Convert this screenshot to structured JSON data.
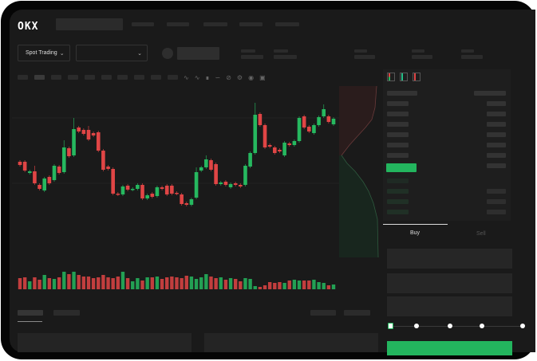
{
  "header": {
    "logo": "OKX",
    "market_selector": "Spot Trading",
    "pair_selector": ""
  },
  "orderbook": {
    "view_icons": [
      "orderbook-both-icon",
      "orderbook-bids-icon",
      "orderbook-asks-icon"
    ]
  },
  "trade_panel": {
    "tabs": [
      {
        "label": "Buy",
        "active": true
      },
      {
        "label": "Sell",
        "active": false
      }
    ],
    "slider_value_percent": 0,
    "slider_stops": [
      0,
      25,
      50,
      75,
      100
    ]
  },
  "colors": {
    "up": "#26b85f",
    "down": "#e04545",
    "background": "#1a1a1a",
    "accent": "#23b55e"
  },
  "chart_data": {
    "type": "candlestick",
    "grid": true,
    "candles": [
      {
        "o": 97,
        "c": 93
      },
      {
        "o": 97,
        "c": 86
      },
      {
        "o": 83,
        "c": 85
      },
      {
        "o": 85,
        "c": 70,
        "h": 92
      },
      {
        "o": 68,
        "c": 63
      },
      {
        "o": 61,
        "c": 76
      },
      {
        "o": 78,
        "c": 70
      },
      {
        "o": 74,
        "c": 92
      },
      {
        "o": 91,
        "c": 83
      },
      {
        "o": 84,
        "c": 115,
        "h": 124
      },
      {
        "o": 114,
        "c": 104
      },
      {
        "o": 105,
        "c": 138,
        "h": 152
      },
      {
        "o": 140,
        "c": 135
      },
      {
        "o": 137,
        "c": 132
      },
      {
        "o": 137,
        "c": 125,
        "h": 142
      },
      {
        "o": 133,
        "c": 130
      },
      {
        "o": 134,
        "c": 111
      },
      {
        "o": 111,
        "c": 87
      },
      {
        "o": 91,
        "c": 88
      },
      {
        "o": 88,
        "c": 57
      },
      {
        "o": 57,
        "c": 56
      },
      {
        "o": 56,
        "c": 66
      },
      {
        "o": 67,
        "c": 62
      },
      {
        "o": 62,
        "c": 63
      },
      {
        "o": 63,
        "c": 68
      },
      {
        "o": 68,
        "c": 51
      },
      {
        "o": 51,
        "c": 55
      },
      {
        "o": 57,
        "c": 53
      },
      {
        "o": 54,
        "c": 65
      },
      {
        "o": 65,
        "c": 63
      },
      {
        "o": 67,
        "c": 56
      },
      {
        "o": 67,
        "c": 57
      },
      {
        "o": 58,
        "c": 57
      },
      {
        "o": 56,
        "c": 44
      },
      {
        "o": 45,
        "c": 43
      },
      {
        "o": 43,
        "c": 50
      },
      {
        "o": 52,
        "c": 84,
        "h": 90
      },
      {
        "o": 86,
        "c": 90
      },
      {
        "o": 90,
        "c": 100,
        "h": 105
      },
      {
        "o": 99,
        "c": 87
      },
      {
        "o": 94,
        "c": 69
      },
      {
        "o": 69,
        "c": 71
      },
      {
        "o": 72,
        "c": 68
      },
      {
        "o": 65,
        "c": 69
      },
      {
        "o": 70,
        "c": 68
      },
      {
        "o": 68,
        "c": 66
      },
      {
        "o": 68,
        "c": 92
      },
      {
        "o": 91,
        "c": 108
      },
      {
        "o": 108,
        "c": 156,
        "h": 171
      },
      {
        "o": 157,
        "c": 143
      },
      {
        "o": 143,
        "c": 115
      },
      {
        "o": 118,
        "c": 116
      },
      {
        "o": 115,
        "c": 108
      },
      {
        "o": 112,
        "c": 110
      },
      {
        "o": 105,
        "c": 121
      },
      {
        "o": 120,
        "c": 118
      },
      {
        "o": 118,
        "c": 123
      },
      {
        "o": 123,
        "c": 152
      },
      {
        "o": 154,
        "c": 140
      },
      {
        "o": 141,
        "c": 135
      },
      {
        "o": 133,
        "c": 143
      },
      {
        "o": 143,
        "c": 153
      },
      {
        "o": 154,
        "c": 163,
        "h": 169
      },
      {
        "o": 154,
        "c": 147
      },
      {
        "o": 144,
        "c": 151
      }
    ],
    "volume": [
      14,
      15,
      10,
      15,
      12,
      18,
      14,
      13,
      15,
      22,
      19,
      22,
      18,
      16,
      16,
      14,
      15,
      18,
      15,
      14,
      16,
      22,
      14,
      10,
      14,
      11,
      15,
      15,
      16,
      13,
      15,
      16,
      15,
      14,
      17,
      16,
      13,
      15,
      19,
      16,
      14,
      15,
      12,
      14,
      13,
      10,
      14,
      13,
      4,
      3,
      5,
      9,
      8,
      9,
      8,
      11,
      12,
      11,
      11,
      11,
      12,
      9,
      8,
      5,
      6
    ],
    "depth": {
      "asks_side": "top",
      "bids_side": "bottom"
    }
  }
}
